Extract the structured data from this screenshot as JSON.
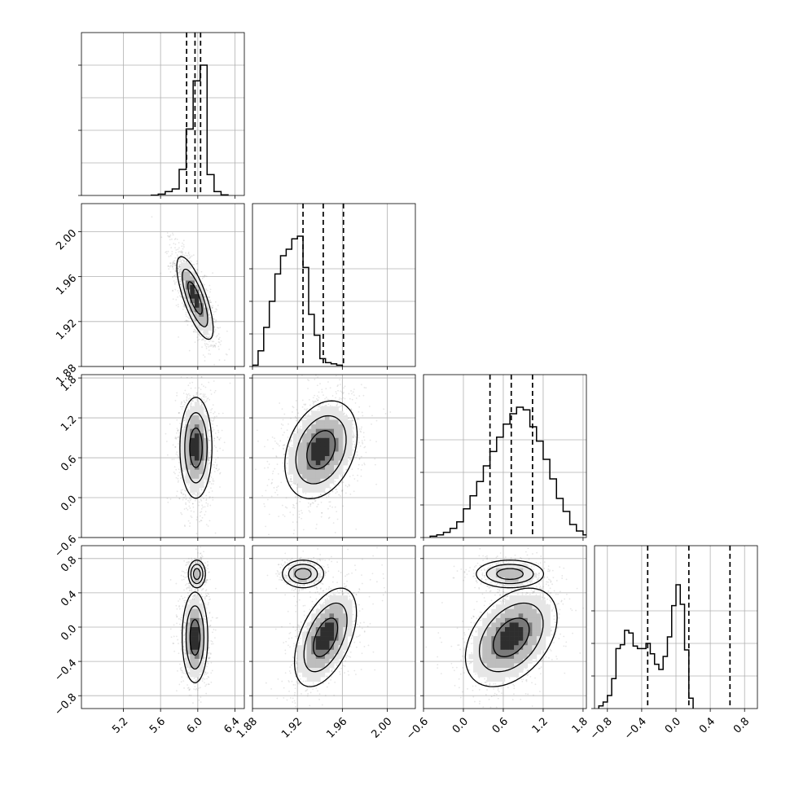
{
  "chart_data": {
    "type": "corner",
    "parameters": [
      {
        "ticks": [
          5.2,
          5.6,
          6.0,
          6.4
        ],
        "range": [
          4.75,
          6.5
        ],
        "quantiles": [
          5.88,
          5.97,
          6.03
        ]
      },
      {
        "ticks": [
          1.88,
          1.92,
          1.96,
          2.0
        ],
        "range": [
          1.88,
          2.025
        ],
        "quantiles": [
          1.925,
          1.943,
          1.961
        ]
      },
      {
        "ticks": [
          -0.6,
          0.0,
          0.6,
          1.2,
          1.8
        ],
        "range": [
          -0.6,
          1.85
        ],
        "quantiles": [
          0.4,
          0.72,
          1.04
        ]
      },
      {
        "ticks": [
          -0.8,
          -0.4,
          0.0,
          0.4,
          0.8
        ],
        "range": [
          -0.95,
          0.95
        ],
        "quantiles": [
          -0.33,
          0.15,
          0.63
        ]
      }
    ],
    "x_tick_labels": [
      [
        "5.2",
        "5.6",
        "6.0",
        "6.4"
      ],
      [
        "1.88",
        "1.92",
        "1.96",
        "2.00"
      ],
      [
        "−0.6",
        "0.0",
        "0.6",
        "1.2",
        "1.8"
      ],
      [
        "−0.8",
        "−0.4",
        "0.0",
        "0.4",
        "0.8"
      ]
    ],
    "y_tick_labels": [
      [],
      [
        "1.88",
        "1.92",
        "1.96",
        "2.00"
      ],
      [
        "−0.6",
        "0.0",
        "0.6",
        "1.2",
        "1.8"
      ],
      [
        "−0.8",
        "−0.4",
        "0.0",
        "0.4",
        "0.8"
      ]
    ],
    "histograms": [
      {
        "edges_start": 5.5,
        "bin_width": 0.075,
        "counts": [
          0.2,
          1,
          3,
          5,
          20,
          51,
          88,
          100,
          16,
          3,
          0.5
        ]
      },
      {
        "edges_start": 1.88,
        "bin_width": 0.005,
        "counts": [
          1,
          12,
          30,
          50,
          71,
          85,
          90,
          98,
          100,
          76,
          40,
          24,
          6,
          3,
          2,
          1
        ]
      },
      {
        "edges_start": -0.5,
        "bin_width": 0.1,
        "counts": [
          1,
          2,
          4,
          7,
          12,
          22,
          32,
          43,
          55,
          66,
          77,
          87,
          95,
          100,
          98,
          85,
          74,
          60,
          45,
          30,
          20,
          10,
          5,
          2,
          1
        ]
      },
      {
        "edges_start": -0.9,
        "bin_width": 0.05,
        "counts": [
          2,
          5,
          10,
          23,
          46,
          49,
          60,
          58,
          48,
          46,
          46,
          50,
          42,
          34,
          30,
          40,
          55,
          79,
          95,
          80,
          45,
          8
        ]
      }
    ],
    "hist_ylim": [
      0,
      125
    ],
    "hist_extra_grid": [
      {
        "panel": 0,
        "value": 100
      }
    ],
    "density_blobs": {
      "1,0": [
        {
          "mx": 5.97,
          "my": 1.941,
          "sx": 0.085,
          "sy": 0.016,
          "rho": -0.75,
          "w": 1
        }
      ],
      "2,0": [
        {
          "mx": 5.98,
          "my": 0.75,
          "sx": 0.075,
          "sy": 0.33,
          "rho": 0.0,
          "w": 1
        }
      ],
      "2,1": [
        {
          "mx": 1.941,
          "my": 0.72,
          "sx": 0.014,
          "sy": 0.32,
          "rho": 0.3,
          "w": 1
        }
      ],
      "3,0": [
        {
          "mx": 5.99,
          "my": 0.62,
          "sx": 0.04,
          "sy": 0.07,
          "rho": 0.0,
          "w": 0.35
        },
        {
          "mx": 5.97,
          "my": -0.12,
          "sx": 0.06,
          "sy": 0.23,
          "rho": 0.0,
          "w": 0.65
        }
      ],
      "3,1": [
        {
          "mx": 1.925,
          "my": 0.62,
          "sx": 0.008,
          "sy": 0.07,
          "rho": 0.0,
          "w": 0.35
        },
        {
          "mx": 1.945,
          "my": -0.12,
          "sx": 0.012,
          "sy": 0.25,
          "rho": 0.5,
          "w": 0.65
        }
      ],
      "3,2": [
        {
          "mx": 0.7,
          "my": 0.62,
          "sx": 0.22,
          "sy": 0.07,
          "rho": 0.0,
          "w": 0.35
        },
        {
          "mx": 0.72,
          "my": -0.12,
          "sx": 0.3,
          "sy": 0.25,
          "rho": 0.4,
          "w": 0.65
        }
      ]
    },
    "grid": true,
    "line_color": "#000000",
    "point_color": "#777777",
    "density_color": "#000000"
  }
}
